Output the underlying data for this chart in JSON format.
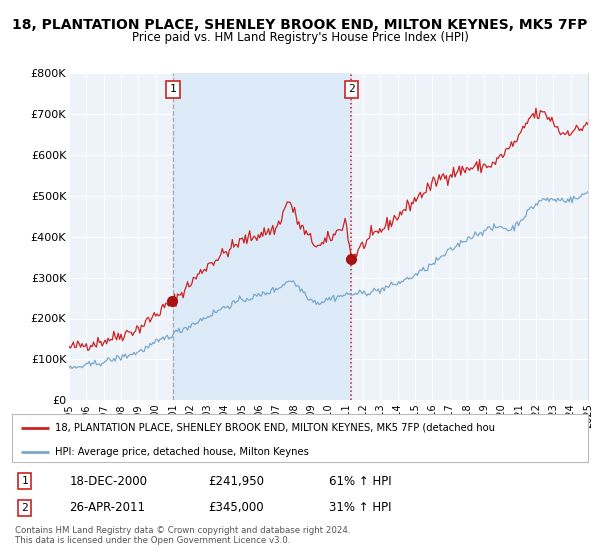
{
  "title": "18, PLANTATION PLACE, SHENLEY BROOK END, MILTON KEYNES, MK5 7FP",
  "subtitle": "Price paid vs. HM Land Registry's House Price Index (HPI)",
  "ylim": [
    0,
    800000
  ],
  "yticks": [
    0,
    100000,
    200000,
    300000,
    400000,
    500000,
    600000,
    700000,
    800000
  ],
  "ytick_labels": [
    "£0",
    "£100K",
    "£200K",
    "£300K",
    "£400K",
    "£500K",
    "£600K",
    "£700K",
    "£800K"
  ],
  "background_color": "#ffffff",
  "plot_bg_color": "#eef3f9",
  "grid_color": "#ffffff",
  "shade_color": "#ddeaf7",
  "red_line_color": "#cc2222",
  "blue_line_color": "#7aa8cc",
  "marker_color": "#aa1111",
  "vline1_color": "#aaaaaa",
  "vline2_color": "#cc2222",
  "legend_label_red": "18, PLANTATION PLACE, SHENLEY BROOK END, MILTON KEYNES, MK5 7FP (detached hou",
  "legend_label_blue": "HPI: Average price, detached house, Milton Keynes",
  "table_row1": [
    "1",
    "18-DEC-2000",
    "£241,950",
    "61% ↑ HPI"
  ],
  "table_row2": [
    "2",
    "26-APR-2011",
    "£345,000",
    "31% ↑ HPI"
  ],
  "footer1": "Contains HM Land Registry data © Crown copyright and database right 2024.",
  "footer2": "This data is licensed under the Open Government Licence v3.0.",
  "marker1_x": 2000.96,
  "marker1_y": 241950,
  "marker2_x": 2011.32,
  "marker2_y": 345000,
  "vline1_x": 2001.0,
  "vline2_x": 2011.32,
  "shade_start": 2001.0,
  "shade_end": 2011.32,
  "xlim": [
    1995,
    2025
  ],
  "xticks": [
    1995,
    1996,
    1997,
    1998,
    1999,
    2000,
    2001,
    2002,
    2003,
    2004,
    2005,
    2006,
    2007,
    2008,
    2009,
    2010,
    2011,
    2012,
    2013,
    2014,
    2015,
    2016,
    2017,
    2018,
    2019,
    2020,
    2021,
    2022,
    2023,
    2024,
    2025
  ]
}
